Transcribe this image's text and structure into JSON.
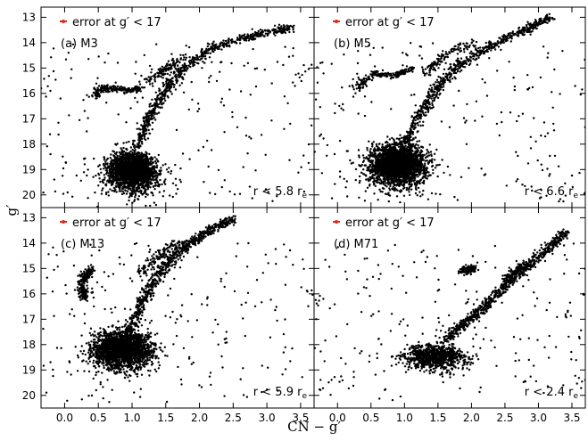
{
  "figure": {
    "xlabel": "CN − g′",
    "ylabel": "g′",
    "error_text": "error at g′ < 17",
    "error_color": "#e8271b",
    "point_color": "#000000"
  },
  "chart_data": [
    {
      "type": "scatter",
      "panel": "(a) M3",
      "radius_text": "r < 5.8 r",
      "radius_sub": "e",
      "xlim": [
        -0.35,
        3.7
      ],
      "ylim": [
        20.5,
        12.6
      ],
      "x_ticks": [
        0.0,
        0.5,
        1.0,
        1.5,
        2.0,
        2.5,
        3.0,
        3.5
      ],
      "y_ticks": [
        13,
        14,
        15,
        16,
        17,
        18,
        19,
        20
      ],
      "features": {
        "main_sequence": {
          "x": 1.0,
          "y": 18.9,
          "sx": 0.17,
          "sy": 0.45,
          "n": 2200
        },
        "rgb": [
          [
            1.05,
            18.2
          ],
          [
            1.25,
            17.0
          ],
          [
            1.45,
            16.0
          ],
          [
            1.75,
            15.0
          ],
          [
            2.2,
            14.2
          ],
          [
            2.8,
            13.7
          ],
          [
            3.4,
            13.4
          ]
        ],
        "horizontal_branch": [
          [
            0.45,
            16.1
          ],
          [
            0.55,
            15.8
          ],
          [
            0.75,
            15.8
          ],
          [
            1.0,
            15.9
          ],
          [
            1.15,
            15.8
          ]
        ],
        "agb": [
          [
            1.2,
            15.6
          ],
          [
            1.5,
            15.0
          ],
          [
            1.8,
            14.6
          ]
        ]
      }
    },
    {
      "type": "scatter",
      "panel": "(b) M5",
      "radius_text": "r < 6.6 r",
      "radius_sub": "e",
      "xlim": [
        -0.35,
        3.7
      ],
      "ylim": [
        20.5,
        12.6
      ],
      "x_ticks": [
        0.0,
        0.5,
        1.0,
        1.5,
        2.0,
        2.5,
        3.0,
        3.5
      ],
      "y_ticks": [
        13,
        14,
        15,
        16,
        17,
        18,
        19,
        20
      ],
      "features": {
        "main_sequence": {
          "x": 0.9,
          "y": 18.6,
          "sx": 0.2,
          "sy": 0.5,
          "n": 2600
        },
        "rgb": [
          [
            1.0,
            18.0
          ],
          [
            1.25,
            16.8
          ],
          [
            1.5,
            15.7
          ],
          [
            1.85,
            14.8
          ],
          [
            2.3,
            14.1
          ],
          [
            2.8,
            13.5
          ],
          [
            3.2,
            13.0
          ]
        ],
        "horizontal_branch": [
          [
            0.3,
            15.8
          ],
          [
            0.4,
            15.5
          ],
          [
            0.55,
            15.2
          ],
          [
            0.75,
            15.3
          ],
          [
            0.95,
            15.2
          ],
          [
            1.1,
            15.0
          ]
        ],
        "agb": [
          [
            1.3,
            15.2
          ],
          [
            1.6,
            14.5
          ],
          [
            2.0,
            14.0
          ]
        ]
      }
    },
    {
      "type": "scatter",
      "panel": "(c) M13",
      "radius_text": "r < 5.9 r",
      "radius_sub": "e",
      "xlim": [
        -0.35,
        3.7
      ],
      "ylim": [
        20.5,
        12.6
      ],
      "x_ticks": [
        0.0,
        0.5,
        1.0,
        1.5,
        2.0,
        2.5,
        3.0,
        3.5
      ],
      "y_ticks": [
        13,
        14,
        15,
        16,
        17,
        18,
        19,
        20
      ],
      "features": {
        "main_sequence": {
          "x": 0.85,
          "y": 18.0,
          "sx": 0.2,
          "sy": 0.45,
          "n": 2300
        },
        "rgb": [
          [
            0.95,
            17.5
          ],
          [
            1.15,
            16.3
          ],
          [
            1.4,
            15.2
          ],
          [
            1.7,
            14.3
          ],
          [
            2.1,
            13.6
          ],
          [
            2.5,
            13.0
          ]
        ],
        "horizontal_branch": [
          [
            0.3,
            16.2
          ],
          [
            0.25,
            15.7
          ],
          [
            0.3,
            15.3
          ],
          [
            0.4,
            15.0
          ]
        ],
        "agb": [
          [
            1.1,
            15.2
          ],
          [
            1.4,
            14.5
          ],
          [
            1.7,
            13.9
          ]
        ]
      }
    },
    {
      "type": "scatter",
      "panel": "(d) M71",
      "radius_text": "r < 2.4 r",
      "radius_sub": "e",
      "xlim": [
        -0.35,
        3.7
      ],
      "ylim": [
        20.5,
        12.6
      ],
      "x_ticks": [
        0.0,
        0.5,
        1.0,
        1.5,
        2.0,
        2.5,
        3.0,
        3.5
      ],
      "y_ticks": [
        13,
        14,
        15,
        16,
        17,
        18,
        19,
        20
      ],
      "features": {
        "main_sequence": {
          "x": 1.45,
          "y": 18.35,
          "sx": 0.22,
          "sy": 0.3,
          "n": 900
        },
        "rgb": [
          [
            1.6,
            17.8
          ],
          [
            1.9,
            17.2
          ],
          [
            2.2,
            16.5
          ],
          [
            2.5,
            15.7
          ],
          [
            2.8,
            15.0
          ],
          [
            3.1,
            14.3
          ],
          [
            3.4,
            13.6
          ]
        ],
        "horizontal_branch": [
          [
            1.9,
            15.1
          ],
          [
            2.0,
            15.0
          ]
        ],
        "agb": [
          [
            2.5,
            15.5
          ],
          [
            2.8,
            14.8
          ]
        ]
      }
    }
  ]
}
